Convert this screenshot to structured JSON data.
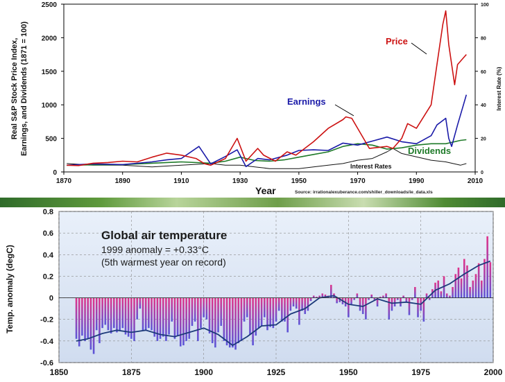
{
  "chart_data": [
    {
      "type": "line",
      "title": "",
      "xlabel": "Year",
      "ylabel": "Real S&P Stock Price Index, Earnings, and Dividends (1871 = 100)",
      "ylabel_lines": [
        "Real S&P Stock Price Index,",
        "Earnings, and Dividends (1871 = 100)"
      ],
      "y2label": "Interest Rate (%)",
      "xlim": [
        1870,
        2010
      ],
      "ylim": [
        0,
        2500
      ],
      "y2lim": [
        0,
        100
      ],
      "xticks": [
        "1870",
        "1890",
        "1910",
        "1930",
        "1950",
        "1970",
        "1990",
        "2010"
      ],
      "yticks": [
        "0",
        "500",
        "1000",
        "1500",
        "2000",
        "2500"
      ],
      "y2ticks": [
        "0",
        "20",
        "40",
        "60",
        "80",
        "100"
      ],
      "grid": false,
      "source": "Source: irrationalexuberance.com/shiller_downloads/ie_data.xls",
      "series": [
        {
          "name": "Price",
          "color": "#cc1111",
          "axis": "left",
          "x": [
            1871,
            1875,
            1880,
            1885,
            1890,
            1895,
            1900,
            1905,
            1910,
            1915,
            1918,
            1920,
            1925,
            1929,
            1932,
            1936,
            1938,
            1942,
            1946,
            1949,
            1955,
            1960,
            1965,
            1966,
            1968,
            1970,
            1974,
            1980,
            1982,
            1985,
            1987,
            1990,
            1995,
            1997,
            1999,
            2000,
            2001,
            2003,
            2004,
            2006,
            2007
          ],
          "y": [
            100,
            95,
            130,
            140,
            160,
            150,
            220,
            280,
            250,
            200,
            120,
            100,
            200,
            500,
            160,
            350,
            250,
            160,
            300,
            250,
            450,
            650,
            780,
            820,
            800,
            650,
            350,
            380,
            350,
            500,
            720,
            650,
            1000,
            1600,
            2200,
            2400,
            1900,
            1300,
            1600,
            1700,
            1750
          ]
        },
        {
          "name": "Earnings",
          "color": "#1a1aa8",
          "axis": "left",
          "x": [
            1871,
            1880,
            1890,
            1900,
            1905,
            1910,
            1916,
            1920,
            1925,
            1929,
            1932,
            1936,
            1940,
            1946,
            1950,
            1955,
            1960,
            1965,
            1970,
            1975,
            1980,
            1985,
            1990,
            1995,
            1997,
            2000,
            2001,
            2002,
            2004,
            2006,
            2007
          ],
          "y": [
            100,
            120,
            110,
            150,
            180,
            200,
            380,
            120,
            230,
            330,
            80,
            200,
            180,
            250,
            320,
            330,
            320,
            430,
            400,
            460,
            520,
            450,
            420,
            540,
            700,
            800,
            500,
            380,
            700,
            1000,
            1150
          ]
        },
        {
          "name": "Dividends",
          "color": "#1e7a28",
          "axis": "left",
          "x": [
            1871,
            1880,
            1890,
            1900,
            1910,
            1920,
            1925,
            1930,
            1935,
            1940,
            1945,
            1950,
            1955,
            1960,
            1965,
            1970,
            1975,
            1980,
            1985,
            1990,
            1995,
            2000,
            2005,
            2007
          ],
          "y": [
            100,
            105,
            110,
            130,
            150,
            130,
            160,
            220,
            170,
            160,
            180,
            220,
            260,
            300,
            380,
            420,
            400,
            340,
            360,
            400,
            420,
            420,
            470,
            480
          ]
        },
        {
          "name": "Interest Rates",
          "color": "#111111",
          "axis": "right",
          "x": [
            1871,
            1880,
            1890,
            1900,
            1910,
            1920,
            1925,
            1930,
            1935,
            1940,
            1945,
            1950,
            1955,
            1960,
            1965,
            1970,
            1975,
            1980,
            1982,
            1985,
            1990,
            1995,
            2000,
            2005,
            2007
          ],
          "y": [
            5,
            4,
            4,
            3,
            4,
            5,
            4,
            4,
            3,
            2,
            2,
            2,
            3,
            4,
            5,
            7,
            8,
            12,
            14,
            11,
            9,
            7,
            6,
            4,
            5
          ]
        }
      ]
    },
    {
      "type": "bar",
      "xlabel": "",
      "ylabel": "Temp. anomaly (degC)",
      "xlim": [
        1850,
        2000
      ],
      "ylim": [
        -0.6,
        0.8
      ],
      "xticks": [
        "1850",
        "1875",
        "1900",
        "1925",
        "1950",
        "1975",
        "2000"
      ],
      "yticks": [
        "0.8",
        "0.6",
        "0.4",
        "0.2",
        "0",
        "-0.2",
        "-0.4",
        "-0.6"
      ],
      "annotation": [
        "Global air temperature",
        "1999 anomaly = +0.33°C",
        "(5th warmest year on record)"
      ],
      "grid": true,
      "bar_color": "#e0338a",
      "bar_color_alt": "#5a55d8",
      "smooth_color": "#1c3a7a",
      "series": [
        {
          "name": "",
          "kind": "bars",
          "x": [
            1856,
            1857,
            1858,
            1859,
            1860,
            1861,
            1862,
            1863,
            1864,
            1865,
            1866,
            1867,
            1868,
            1869,
            1870,
            1871,
            1872,
            1873,
            1874,
            1875,
            1876,
            1877,
            1878,
            1879,
            1880,
            1881,
            1882,
            1883,
            1884,
            1885,
            1886,
            1887,
            1888,
            1889,
            1890,
            1891,
            1892,
            1893,
            1894,
            1895,
            1896,
            1897,
            1898,
            1899,
            1900,
            1901,
            1902,
            1903,
            1904,
            1905,
            1906,
            1907,
            1908,
            1909,
            1910,
            1911,
            1912,
            1913,
            1914,
            1915,
            1916,
            1917,
            1918,
            1919,
            1920,
            1921,
            1922,
            1923,
            1924,
            1925,
            1926,
            1927,
            1928,
            1929,
            1930,
            1931,
            1932,
            1933,
            1934,
            1935,
            1936,
            1937,
            1938,
            1939,
            1940,
            1941,
            1942,
            1943,
            1944,
            1945,
            1946,
            1947,
            1948,
            1949,
            1950,
            1951,
            1952,
            1953,
            1954,
            1955,
            1956,
            1957,
            1958,
            1959,
            1960,
            1961,
            1962,
            1963,
            1964,
            1965,
            1966,
            1967,
            1968,
            1969,
            1970,
            1971,
            1972,
            1973,
            1974,
            1975,
            1976,
            1977,
            1978,
            1979,
            1980,
            1981,
            1982,
            1983,
            1984,
            1985,
            1986,
            1987,
            1988,
            1989,
            1990,
            1991,
            1992,
            1993,
            1994,
            1995,
            1996,
            1997,
            1998,
            1999
          ],
          "y": [
            -0.38,
            -0.45,
            -0.35,
            -0.4,
            -0.38,
            -0.48,
            -0.52,
            -0.3,
            -0.42,
            -0.28,
            -0.25,
            -0.3,
            -0.33,
            -0.28,
            -0.32,
            -0.3,
            -0.28,
            -0.34,
            -0.36,
            -0.38,
            -0.4,
            -0.2,
            -0.1,
            -0.3,
            -0.3,
            -0.28,
            -0.3,
            -0.36,
            -0.4,
            -0.38,
            -0.36,
            -0.4,
            -0.34,
            -0.22,
            -0.38,
            -0.35,
            -0.45,
            -0.44,
            -0.4,
            -0.38,
            -0.26,
            -0.22,
            -0.4,
            -0.28,
            -0.18,
            -0.2,
            -0.33,
            -0.42,
            -0.46,
            -0.32,
            -0.26,
            -0.4,
            -0.44,
            -0.46,
            -0.46,
            -0.48,
            -0.42,
            -0.4,
            -0.22,
            -0.18,
            -0.34,
            -0.44,
            -0.35,
            -0.28,
            -0.26,
            -0.18,
            -0.3,
            -0.27,
            -0.28,
            -0.22,
            -0.12,
            -0.22,
            -0.22,
            -0.32,
            -0.12,
            -0.08,
            -0.1,
            -0.25,
            -0.12,
            -0.15,
            -0.12,
            -0.03,
            0.02,
            0.01,
            0.02,
            0.04,
            0.03,
            0.02,
            0.12,
            0.04,
            -0.05,
            -0.04,
            -0.06,
            -0.08,
            -0.18,
            -0.06,
            -0.02,
            0.04,
            -0.12,
            -0.15,
            -0.2,
            -0.02,
            0.03,
            -0.02,
            -0.08,
            0.01,
            0.02,
            0.04,
            -0.2,
            -0.12,
            -0.08,
            -0.02,
            -0.08,
            0.02,
            -0.04,
            -0.16,
            -0.02,
            0.1,
            -0.18,
            -0.12,
            -0.22,
            0.04,
            -0.02,
            0.08,
            0.14,
            0.16,
            0.06,
            0.2,
            0.04,
            0.02,
            0.1,
            0.22,
            0.28,
            0.18,
            0.36,
            0.3,
            0.1,
            0.16,
            0.22,
            0.32,
            0.16,
            0.36,
            0.57,
            0.33
          ]
        },
        {
          "name": "",
          "kind": "smooth",
          "x": [
            1856,
            1860,
            1865,
            1870,
            1875,
            1880,
            1885,
            1890,
            1895,
            1900,
            1905,
            1910,
            1915,
            1920,
            1925,
            1930,
            1935,
            1940,
            1945,
            1950,
            1955,
            1960,
            1965,
            1970,
            1975,
            1980,
            1985,
            1990,
            1995,
            1999
          ],
          "y": [
            -0.4,
            -0.38,
            -0.33,
            -0.3,
            -0.32,
            -0.3,
            -0.34,
            -0.36,
            -0.32,
            -0.28,
            -0.34,
            -0.44,
            -0.36,
            -0.26,
            -0.25,
            -0.15,
            -0.1,
            0.0,
            0.02,
            -0.06,
            -0.08,
            -0.01,
            -0.05,
            -0.04,
            -0.06,
            0.07,
            0.13,
            0.22,
            0.3,
            0.34
          ]
        }
      ]
    }
  ]
}
